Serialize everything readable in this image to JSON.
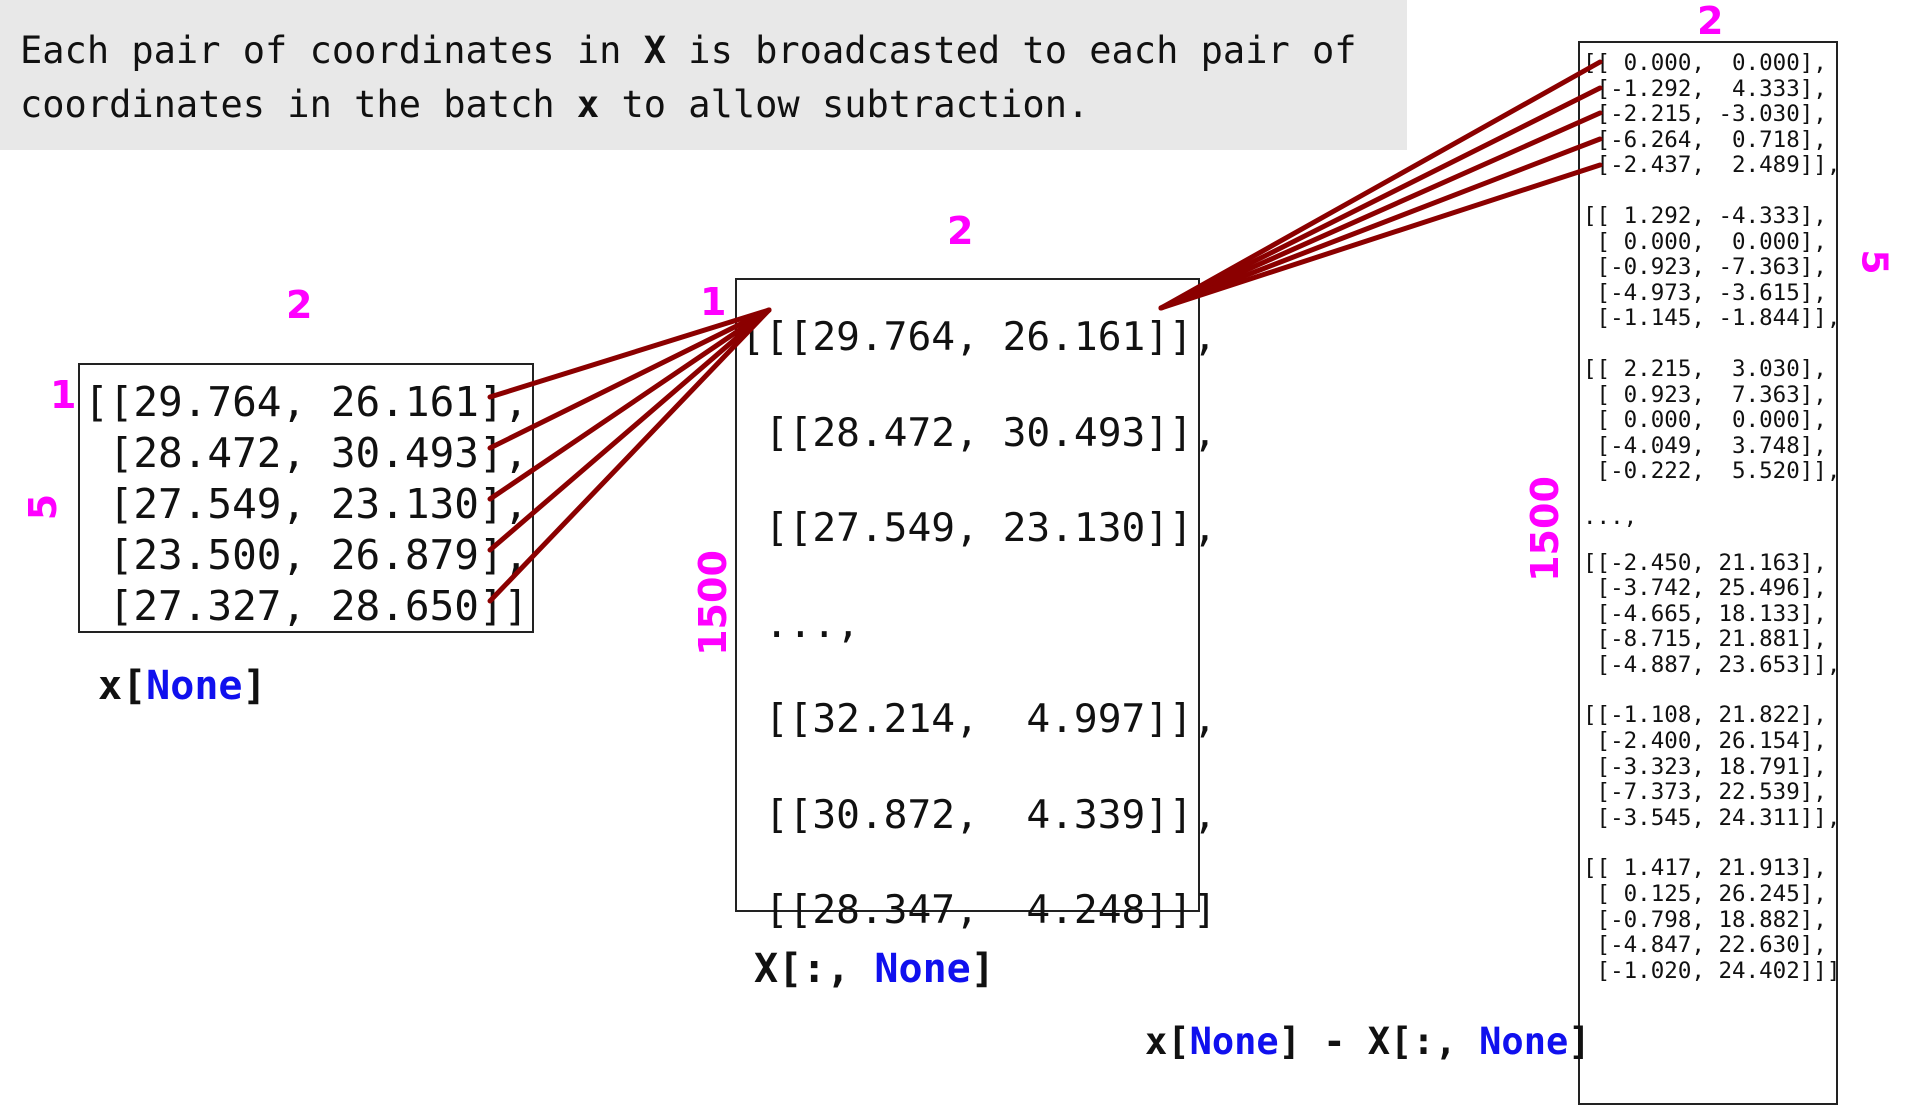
{
  "caption": {
    "line1": [
      "Each pair of coordinates in ",
      "X",
      " is broadcasted to each pair of"
    ],
    "line2": [
      "coordinates in the batch ",
      "x",
      " to allow subtraction."
    ]
  },
  "left": {
    "dim_top": "2",
    "dim_row": "1",
    "dim_side": "5",
    "lines": [
      "[[29.764, 26.161],",
      " [28.472, 30.493],",
      " [27.549, 23.130],",
      " [23.500, 26.879],",
      " [27.327, 28.650]]"
    ],
    "label": {
      "prefix": "x[",
      "kw": "None",
      "suffix": "]"
    }
  },
  "middle": {
    "dim_top": "2",
    "dim_row": "1",
    "dim_side": "1500",
    "lines": [
      "[[[29.764, 26.161]],",
      " [[28.472, 30.493]],",
      " [[27.549, 23.130]],",
      " ...,",
      " [[32.214,  4.997]],",
      " [[30.872,  4.339]],",
      " [[28.347,  4.248]]]"
    ],
    "label": {
      "prefix": "X[:, ",
      "kw": "None",
      "suffix": "]"
    }
  },
  "right": {
    "dim_top": "2",
    "dim_group": "5",
    "dim_side": "1500",
    "groups": [
      [
        "[[ 0.000,  0.000],",
        " [-1.292,  4.333],",
        " [-2.215, -3.030],",
        " [-6.264,  0.718],",
        " [-2.437,  2.489]],"
      ],
      [
        "[[ 1.292, -4.333],",
        " [ 0.000,  0.000],",
        " [-0.923, -7.363],",
        " [-4.973, -3.615],",
        " [-1.145, -1.844]],"
      ],
      [
        "[[ 2.215,  3.030],",
        " [ 0.923,  7.363],",
        " [ 0.000,  0.000],",
        " [-4.049,  3.748],",
        " [-0.222,  5.520]],"
      ],
      [
        "...,"
      ],
      [
        "[[-2.450, 21.163],",
        " [-3.742, 25.496],",
        " [-4.665, 18.133],",
        " [-8.715, 21.881],",
        " [-4.887, 23.653]],"
      ],
      [
        "[[-1.108, 21.822],",
        " [-2.400, 26.154],",
        " [-3.323, 18.791],",
        " [-7.373, 22.539],",
        " [-3.545, 24.311]],"
      ],
      [
        "[[ 1.417, 21.913],",
        " [ 0.125, 26.245],",
        " [-0.798, 18.882],",
        " [-4.847, 22.630],",
        " [-1.020, 24.402]]]"
      ]
    ],
    "label": {
      "p1": "x[",
      "kw1": "None",
      "p2": "] - X[:, ",
      "kw2": "None",
      "p3": "]"
    }
  },
  "colors": {
    "connector": "#8b0000",
    "dimension": "#ff00ff",
    "keyword": "#1010ee",
    "caption_bg": "#e8e8e8"
  }
}
